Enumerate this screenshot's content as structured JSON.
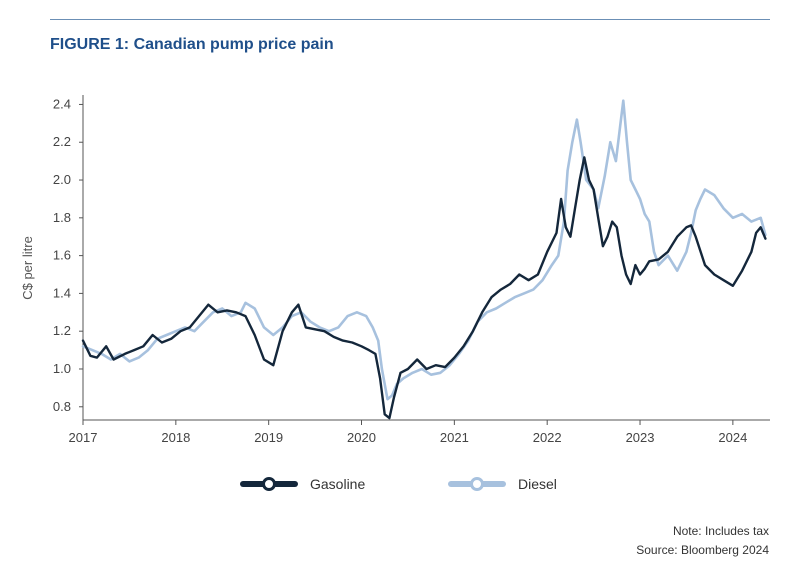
{
  "figure": {
    "label": "FIGURE 1:",
    "title": "Canadian pump price pain"
  },
  "notes": {
    "note": "Note: Includes tax",
    "source": "Source: Bloomberg 2024"
  },
  "colors": {
    "gasoline": "#14273b",
    "diesel": "#a7c1de",
    "title": "#1f4f8a",
    "rule": "#6b8fb5"
  },
  "chart_data": {
    "type": "line",
    "title": "Canadian pump price pain",
    "xlabel": "",
    "ylabel": "C$ per litre",
    "xlim": [
      2017.0,
      2024.4
    ],
    "ylim": [
      0.73,
      2.45
    ],
    "x_ticks": [
      "2017",
      "2018",
      "2019",
      "2020",
      "2021",
      "2022",
      "2023",
      "2024"
    ],
    "y_ticks": [
      "0.8",
      "1.0",
      "1.2",
      "1.4",
      "1.6",
      "1.8",
      "2.0",
      "2.2",
      "2.4"
    ],
    "grid": false,
    "legend": "bottom",
    "series": [
      {
        "name": "Gasoline",
        "x": [
          2017.0,
          2017.08,
          2017.15,
          2017.25,
          2017.33,
          2017.45,
          2017.55,
          2017.65,
          2017.75,
          2017.85,
          2017.95,
          2018.05,
          2018.15,
          2018.25,
          2018.35,
          2018.45,
          2018.55,
          2018.65,
          2018.75,
          2018.85,
          2018.95,
          2019.05,
          2019.15,
          2019.25,
          2019.32,
          2019.4,
          2019.5,
          2019.6,
          2019.7,
          2019.8,
          2019.9,
          2020.0,
          2020.08,
          2020.15,
          2020.2,
          2020.25,
          2020.3,
          2020.35,
          2020.42,
          2020.5,
          2020.6,
          2020.7,
          2020.8,
          2020.9,
          2021.0,
          2021.1,
          2021.2,
          2021.3,
          2021.4,
          2021.5,
          2021.6,
          2021.7,
          2021.8,
          2021.9,
          2022.0,
          2022.1,
          2022.15,
          2022.2,
          2022.25,
          2022.3,
          2022.35,
          2022.4,
          2022.45,
          2022.5,
          2022.55,
          2022.6,
          2022.65,
          2022.7,
          2022.75,
          2022.8,
          2022.85,
          2022.9,
          2022.95,
          2023.0,
          2023.05,
          2023.1,
          2023.2,
          2023.3,
          2023.4,
          2023.5,
          2023.55,
          2023.6,
          2023.7,
          2023.8,
          2023.9,
          2024.0,
          2024.1,
          2024.2,
          2024.25,
          2024.3,
          2024.35
        ],
        "values": [
          1.15,
          1.07,
          1.06,
          1.12,
          1.05,
          1.08,
          1.1,
          1.12,
          1.18,
          1.14,
          1.16,
          1.2,
          1.22,
          1.28,
          1.34,
          1.3,
          1.31,
          1.3,
          1.28,
          1.18,
          1.05,
          1.02,
          1.2,
          1.3,
          1.34,
          1.22,
          1.21,
          1.2,
          1.17,
          1.15,
          1.14,
          1.12,
          1.1,
          1.08,
          0.95,
          0.76,
          0.74,
          0.85,
          0.98,
          1.0,
          1.05,
          1.0,
          1.02,
          1.01,
          1.06,
          1.12,
          1.2,
          1.3,
          1.38,
          1.42,
          1.45,
          1.5,
          1.47,
          1.5,
          1.62,
          1.72,
          1.9,
          1.75,
          1.7,
          1.85,
          2.0,
          2.12,
          2.0,
          1.95,
          1.8,
          1.65,
          1.7,
          1.78,
          1.75,
          1.6,
          1.5,
          1.45,
          1.55,
          1.5,
          1.53,
          1.57,
          1.58,
          1.62,
          1.7,
          1.75,
          1.76,
          1.7,
          1.55,
          1.5,
          1.47,
          1.44,
          1.52,
          1.62,
          1.72,
          1.75,
          1.69
        ]
      },
      {
        "name": "Diesel",
        "x": [
          2017.0,
          2017.1,
          2017.2,
          2017.3,
          2017.4,
          2017.5,
          2017.6,
          2017.7,
          2017.8,
          2017.9,
          2018.0,
          2018.1,
          2018.2,
          2018.3,
          2018.4,
          2018.5,
          2018.6,
          2018.7,
          2018.75,
          2018.85,
          2018.95,
          2019.05,
          2019.15,
          2019.25,
          2019.35,
          2019.45,
          2019.55,
          2019.65,
          2019.75,
          2019.85,
          2019.95,
          2020.05,
          2020.12,
          2020.18,
          2020.22,
          2020.28,
          2020.33,
          2020.38,
          2020.45,
          2020.55,
          2020.65,
          2020.75,
          2020.85,
          2020.95,
          2021.05,
          2021.15,
          2021.25,
          2021.35,
          2021.45,
          2021.55,
          2021.65,
          2021.75,
          2021.85,
          2021.95,
          2022.05,
          2022.12,
          2022.18,
          2022.22,
          2022.27,
          2022.32,
          2022.36,
          2022.42,
          2022.5,
          2022.55,
          2022.62,
          2022.68,
          2022.74,
          2022.79,
          2022.82,
          2022.86,
          2022.9,
          2022.95,
          2023.0,
          2023.05,
          2023.1,
          2023.15,
          2023.2,
          2023.3,
          2023.4,
          2023.5,
          2023.55,
          2023.6,
          2023.65,
          2023.7,
          2023.8,
          2023.9,
          2024.0,
          2024.1,
          2024.2,
          2024.3,
          2024.35
        ],
        "values": [
          1.12,
          1.1,
          1.08,
          1.05,
          1.08,
          1.04,
          1.06,
          1.1,
          1.16,
          1.18,
          1.2,
          1.22,
          1.2,
          1.25,
          1.3,
          1.32,
          1.28,
          1.3,
          1.35,
          1.32,
          1.22,
          1.18,
          1.22,
          1.28,
          1.3,
          1.25,
          1.22,
          1.2,
          1.22,
          1.28,
          1.3,
          1.28,
          1.22,
          1.15,
          1.0,
          0.84,
          0.86,
          0.92,
          0.95,
          0.98,
          1.0,
          0.97,
          0.98,
          1.02,
          1.08,
          1.15,
          1.25,
          1.3,
          1.32,
          1.35,
          1.38,
          1.4,
          1.42,
          1.47,
          1.55,
          1.6,
          1.78,
          2.05,
          2.2,
          2.32,
          2.2,
          2.0,
          1.95,
          1.85,
          2.02,
          2.2,
          2.1,
          2.3,
          2.42,
          2.2,
          2.0,
          1.95,
          1.9,
          1.82,
          1.78,
          1.62,
          1.55,
          1.6,
          1.52,
          1.62,
          1.72,
          1.84,
          1.9,
          1.95,
          1.92,
          1.85,
          1.8,
          1.82,
          1.78,
          1.8,
          1.71
        ]
      }
    ]
  }
}
